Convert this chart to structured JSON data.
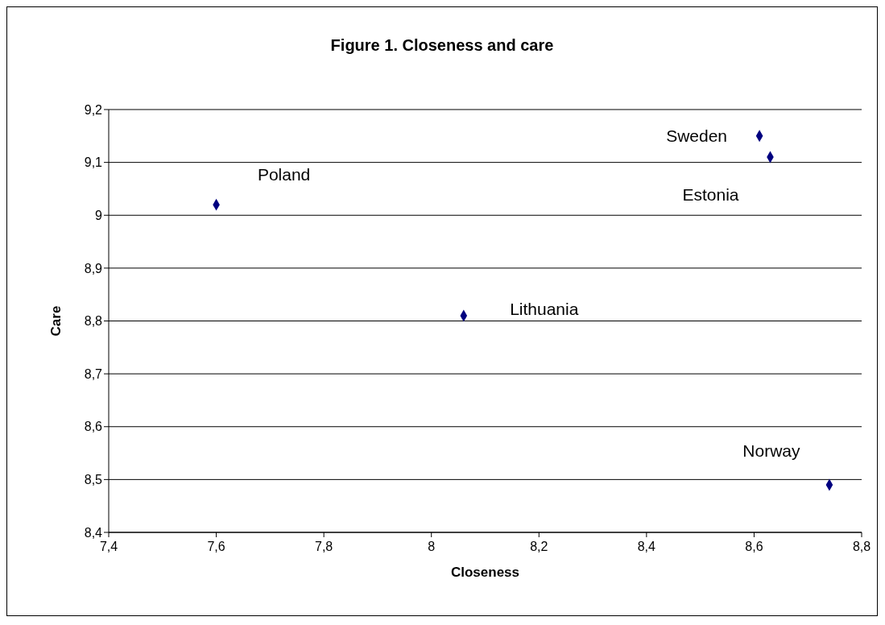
{
  "chart_data": {
    "type": "scatter",
    "title": "Figure 1. Closeness and care",
    "xlabel": "Closeness",
    "ylabel": "Care",
    "series": [
      {
        "color": "#000080",
        "x": [
          7.6,
          8.06,
          8.61,
          8.63,
          8.74
        ],
        "values": [
          9.02,
          8.81,
          9.15,
          9.11,
          8.49
        ]
      }
    ],
    "annotations": [
      {
        "text": "Poland",
        "x": 7.6,
        "y": 9.02
      },
      {
        "text": "Lithuania",
        "x": 8.06,
        "y": 8.81
      },
      {
        "text": "Sweden",
        "x": 8.61,
        "y": 9.15
      },
      {
        "text": "Estonia",
        "x": 8.63,
        "y": 9.11
      },
      {
        "text": "Norway",
        "x": 8.74,
        "y": 8.49
      }
    ],
    "xlim": [
      7.4,
      8.8
    ],
    "xticks": [
      {
        "value": 7.4,
        "label": "7,4"
      },
      {
        "value": 7.6,
        "label": "7,6"
      },
      {
        "value": 7.8,
        "label": "7,8"
      },
      8,
      {
        "value": 8.2,
        "label": "8,2"
      },
      {
        "value": 8.4,
        "label": "8,4"
      },
      {
        "value": 8.6,
        "label": "8,6"
      },
      {
        "value": 8.8,
        "label": "8,8"
      }
    ],
    "ylim": [
      8.4,
      9.2
    ],
    "yticks": [
      {
        "value": 8.4,
        "label": "8,4"
      },
      {
        "value": 8.5,
        "label": "8,5"
      },
      {
        "value": 8.6,
        "label": "8,6"
      },
      {
        "value": 8.7,
        "label": "8,7"
      },
      {
        "value": 8.8,
        "label": "8,8"
      },
      {
        "value": 8.9,
        "label": "8,9"
      },
      9,
      {
        "value": 9.1,
        "label": "9,1"
      },
      {
        "value": 9.2,
        "label": "9,2"
      }
    ],
    "grid": "y",
    "legend": false,
    "marker": "diamond"
  }
}
